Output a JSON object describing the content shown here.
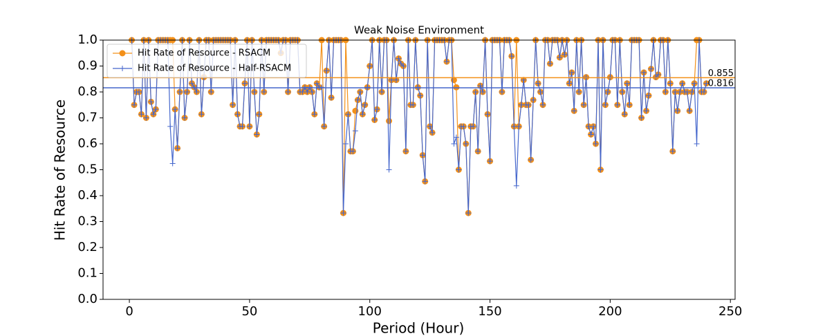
{
  "chart_data": {
    "type": "line",
    "title": "Weak Noise Environment",
    "xlabel": "Period (Hour)",
    "ylabel": "Hit Rate of Resource",
    "x": [
      1,
      2,
      3,
      4,
      5,
      6,
      7,
      8,
      9,
      10,
      11,
      12,
      13,
      14,
      15,
      16,
      17,
      18,
      19,
      20,
      21,
      22,
      23,
      24,
      25,
      26,
      27,
      28,
      29,
      30,
      31,
      32,
      33,
      34,
      35,
      36,
      37,
      38,
      39,
      40,
      41,
      42,
      43,
      44,
      45,
      46,
      47,
      48,
      49,
      50,
      51,
      52,
      53,
      54,
      55,
      56,
      57,
      58,
      59,
      60,
      61,
      62,
      63,
      64,
      65,
      66,
      67,
      68,
      69,
      70,
      71,
      72,
      73,
      74,
      75,
      76,
      77,
      78,
      79,
      80,
      81,
      82,
      83,
      84,
      85,
      86,
      87,
      88,
      89,
      90,
      91,
      92,
      93,
      94,
      95,
      96,
      97,
      98,
      99,
      100,
      101,
      102,
      103,
      104,
      105,
      106,
      107,
      108,
      109,
      110,
      111,
      112,
      113,
      114,
      115,
      116,
      117,
      118,
      119,
      120,
      121,
      122,
      123,
      124,
      125,
      126,
      127,
      128,
      129,
      130,
      131,
      132,
      133,
      134,
      135,
      136,
      137,
      138,
      139,
      140,
      141,
      142,
      143,
      144,
      145,
      146,
      147,
      148,
      149,
      150,
      151,
      152,
      153,
      154,
      155,
      156,
      157,
      158,
      159,
      160,
      161,
      162,
      163,
      164,
      165,
      166,
      167,
      168,
      169,
      170,
      171,
      172,
      173,
      174,
      175,
      176,
      177,
      178,
      179,
      180,
      181,
      182,
      183,
      184,
      185,
      186,
      187,
      188,
      189,
      190,
      191,
      192,
      193,
      194,
      195,
      196,
      197,
      198,
      199,
      200,
      201,
      202,
      203,
      204,
      205,
      206,
      207,
      208,
      209,
      210,
      211,
      212,
      213,
      214,
      215,
      216,
      217,
      218,
      219,
      220,
      221,
      222,
      223,
      224,
      225,
      226,
      227,
      228,
      229,
      230,
      231,
      232,
      233,
      234,
      235,
      236,
      237,
      238,
      239,
      240
    ],
    "series": [
      {
        "name": "Hit Rate of Resource - RSACM",
        "color": "#f39019",
        "marker": "circle",
        "values": [
          1,
          0.75,
          0.8,
          0.8,
          0.714,
          1,
          0.7,
          1,
          0.762,
          0.714,
          0.733,
          1,
          1,
          1,
          1,
          1,
          1,
          1,
          0.733,
          0.583,
          0.8,
          1,
          0.7,
          0.8,
          1,
          0.833,
          0.818,
          0.8,
          1,
          0.714,
          0.857,
          1,
          1,
          0.8,
          1,
          1,
          1,
          1,
          1,
          1,
          1,
          1,
          0.75,
          1,
          0.714,
          0.667,
          0.667,
          0.833,
          1,
          0.667,
          1,
          0.8,
          0.636,
          0.714,
          1,
          0.8,
          1,
          1,
          1,
          1,
          1,
          1,
          0.95,
          1,
          1,
          0.8,
          1,
          1,
          1,
          1,
          0.8,
          0.8,
          0.818,
          0.8,
          0.818,
          0.8,
          0.714,
          0.833,
          0.818,
          1,
          0.667,
          0.882,
          1,
          0.778,
          1,
          1,
          1,
          1,
          0.333,
          1,
          0.714,
          0.571,
          0.571,
          0.727,
          0.769,
          0.8,
          0.714,
          0.75,
          0.818,
          0.9,
          1,
          0.692,
          0.733,
          1,
          0.8,
          1,
          1,
          0.688,
          0.846,
          1,
          0.846,
          0.929,
          0.909,
          0.9,
          0.571,
          1,
          0.75,
          0.75,
          1,
          0.818,
          0.786,
          0.556,
          0.455,
          1,
          0.667,
          0.643,
          1,
          1,
          1,
          1,
          1,
          0.917,
          1,
          1,
          0.846,
          0.818,
          0.5,
          0.667,
          0.667,
          0.6,
          0.333,
          0.667,
          0.667,
          0.8,
          0.571,
          0.824,
          0.8,
          1,
          0.714,
          0.533,
          1,
          1,
          1,
          1,
          0.8,
          1,
          1,
          1,
          0.938,
          0.667,
          1,
          0.667,
          0.75,
          0.846,
          0.75,
          0.75,
          0.538,
          0.769,
          1,
          0.833,
          0.8,
          0.75,
          1,
          1,
          0.909,
          1,
          1,
          1,
          0.933,
          1,
          0.944,
          1,
          0.833,
          0.875,
          0.727,
          1,
          0.8,
          1,
          0.75,
          0.857,
          0.667,
          0.636,
          0.667,
          0.6,
          1,
          0.5,
          1,
          0.75,
          0.8,
          0.857,
          1,
          1,
          0.75,
          1,
          0.8,
          0.714,
          0.833,
          0.75,
          1,
          1,
          1,
          1,
          0.7,
          0.875,
          0.727,
          0.786,
          0.889,
          1,
          0.857,
          0.867,
          1,
          1,
          0.8,
          1,
          0.833,
          0.571,
          0.8,
          0.727,
          0.8,
          0.833,
          0.8,
          0.8,
          0.727,
          0.8,
          0.833,
          1,
          1,
          0.8,
          0.8,
          0.833
        ]
      },
      {
        "name": "Hit Rate of Resource - Half-RSACM",
        "color": "#4466cc",
        "marker": "plus",
        "values": [
          1,
          0.75,
          0.8,
          0.8,
          0.714,
          1,
          0.7,
          1,
          0.762,
          0.714,
          0.733,
          1,
          1,
          1,
          1,
          1,
          0.667,
          0.524,
          0.733,
          0.583,
          0.8,
          1,
          0.7,
          0.8,
          1,
          0.833,
          0.818,
          0.8,
          1,
          0.714,
          0.857,
          1,
          1,
          0.8,
          1,
          1,
          1,
          1,
          1,
          1,
          1,
          1,
          0.75,
          1,
          0.714,
          0.667,
          0.667,
          0.833,
          1,
          0.667,
          1,
          0.8,
          0.636,
          0.714,
          1,
          0.8,
          1,
          1,
          1,
          1,
          1,
          1,
          0.95,
          1,
          1,
          0.8,
          1,
          1,
          1,
          1,
          0.8,
          0.8,
          0.818,
          0.8,
          0.818,
          0.8,
          0.714,
          0.833,
          0.818,
          0.818,
          0.667,
          0.882,
          1,
          0.778,
          1,
          1,
          1,
          1,
          0.333,
          0.6,
          0.714,
          0.571,
          0.571,
          0.65,
          0.769,
          0.8,
          0.714,
          0.75,
          0.818,
          0.9,
          1,
          0.692,
          0.733,
          1,
          0.8,
          1,
          1,
          0.5,
          0.846,
          1,
          0.846,
          0.929,
          0.909,
          0.9,
          0.571,
          1,
          0.75,
          0.75,
          1,
          0.818,
          0.786,
          0.556,
          0.455,
          1,
          0.667,
          0.643,
          1,
          1,
          1,
          1,
          1,
          0.917,
          1,
          1,
          0.6,
          0.625,
          0.5,
          0.667,
          0.667,
          0.6,
          0.333,
          0.667,
          0.667,
          0.8,
          0.571,
          0.824,
          0.8,
          1,
          0.714,
          0.533,
          1,
          1,
          1,
          1,
          0.8,
          1,
          1,
          1,
          0.938,
          0.667,
          0.438,
          0.667,
          0.75,
          0.846,
          0.75,
          0.75,
          0.538,
          0.769,
          1,
          0.833,
          0.8,
          0.75,
          1,
          1,
          0.909,
          1,
          1,
          1,
          0.933,
          1,
          0.944,
          1,
          0.833,
          0.875,
          0.727,
          1,
          0.8,
          1,
          0.75,
          0.857,
          0.667,
          0.636,
          0.667,
          0.6,
          1,
          0.5,
          1,
          0.75,
          0.8,
          0.857,
          1,
          1,
          0.75,
          1,
          0.8,
          0.714,
          0.833,
          0.75,
          1,
          1,
          1,
          1,
          0.7,
          0.875,
          0.727,
          0.786,
          0.889,
          1,
          0.857,
          0.867,
          1,
          1,
          0.8,
          1,
          0.833,
          0.571,
          0.8,
          0.727,
          0.8,
          0.833,
          0.8,
          0.8,
          0.727,
          0.8,
          0.833,
          0.6,
          1,
          0.8,
          0.8,
          0.833
        ]
      }
    ],
    "hlines": [
      {
        "value": 0.855,
        "color": "#f39019"
      },
      {
        "value": 0.816,
        "color": "#4466cc"
      }
    ],
    "xlim": [
      -10.95,
      251.95
    ],
    "xticks": [
      0,
      50,
      100,
      150,
      200,
      250
    ],
    "ylim": [
      0,
      1
    ],
    "yticks": [
      {
        "value": 0,
        "label": "0.0"
      },
      0.1,
      0.2,
      0.3,
      0.4,
      0.5,
      0.6,
      0.7,
      0.8,
      0.9,
      {
        "value": 1,
        "label": "1.0"
      }
    ],
    "legend": "upper left"
  }
}
